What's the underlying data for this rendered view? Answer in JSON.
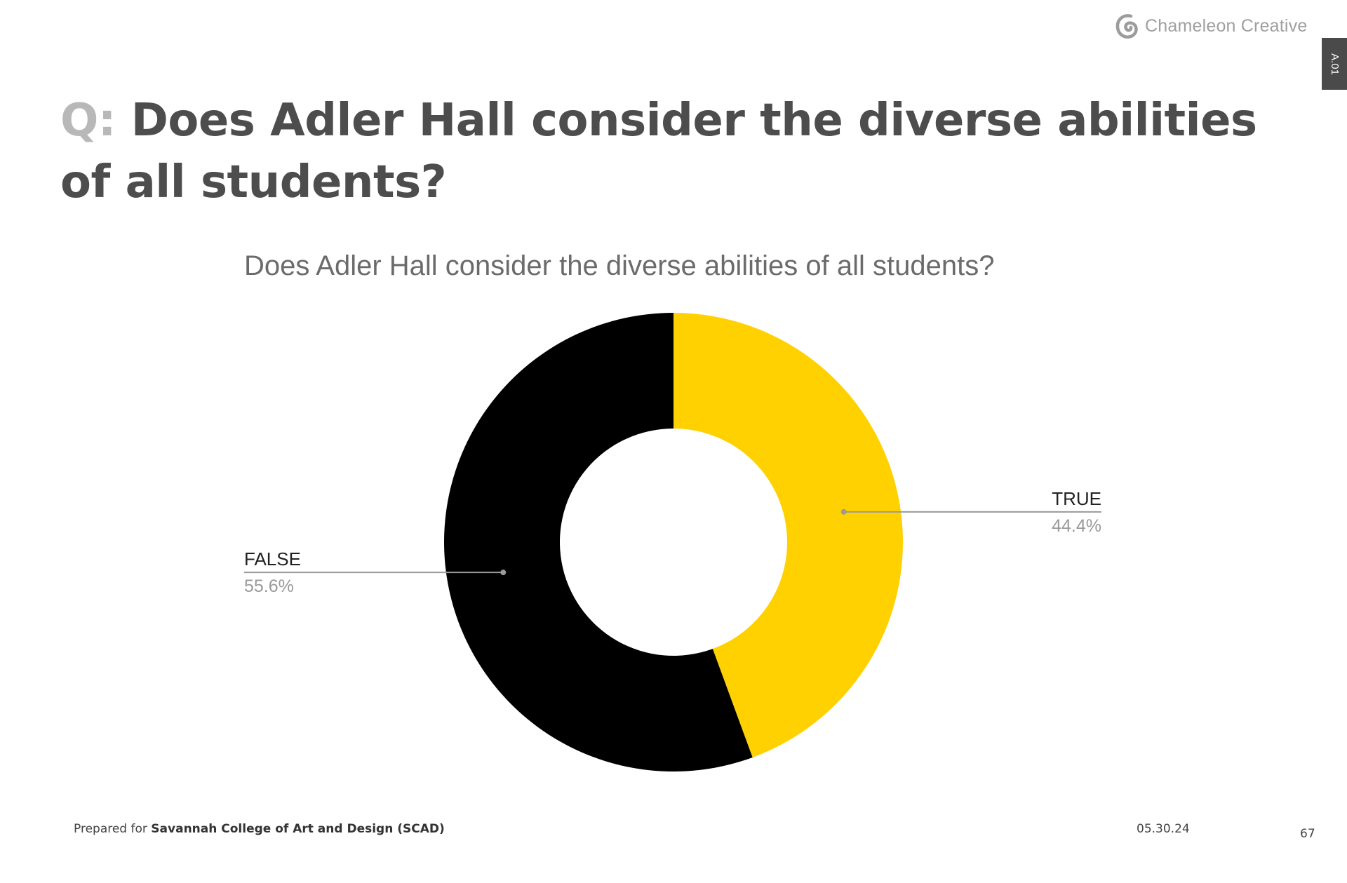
{
  "brand": {
    "logo_text": "Chameleon Creative",
    "logo_icon": "spiral-icon",
    "side_tab": "A.01"
  },
  "headline": {
    "prefix": "Q:",
    "question": "Does Adler Hall consider the diverse abilities of all students?"
  },
  "chart_data": {
    "type": "pie",
    "subtype": "donut",
    "title": "Does Adler Hall consider the diverse abilities of all students?",
    "slices": [
      {
        "label": "TRUE",
        "value": 44.4,
        "value_label": "44.4%",
        "color": "#FFD100"
      },
      {
        "label": "FALSE",
        "value": 55.6,
        "value_label": "55.6%",
        "color": "#000000"
      }
    ],
    "legend": "none"
  },
  "footer": {
    "prepared_for_prefix": "Prepared for",
    "client": "Savannah College of Art and Design (SCAD)",
    "date": "05.30.24",
    "page_number": "67"
  }
}
